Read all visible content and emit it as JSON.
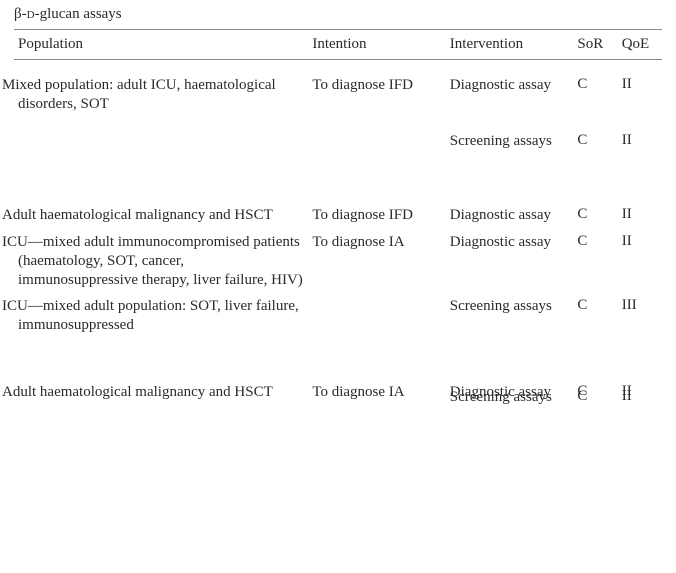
{
  "title_parts": {
    "beta": "β-",
    "d": "d",
    "rest": "-glucan assays"
  },
  "headers": {
    "population": "Population",
    "intention": "Intention",
    "intervention": "Intervention",
    "sor": "SoR",
    "qoe": "QoE"
  },
  "rows": [
    {
      "population": "Mixed population: adult ICU, haematological disorders, SOT",
      "intention": "To diagnose IFD",
      "intervention": "Diagnostic assay",
      "sor": "C",
      "qoe": "II"
    },
    {
      "population": "",
      "intention": "",
      "intervention": "Screening assays",
      "sor": "C",
      "qoe": "II"
    },
    {
      "population": "Adult haematological malignancy and HSCT",
      "intention": "To diagnose IFD",
      "intervention": "Diagnostic assay",
      "sor": "C",
      "qoe": "II"
    },
    {
      "population": "ICU—mixed adult immunocompromised patients (haematology, SOT, cancer, immunosuppressive therapy, liver failure, HIV)",
      "intention": "To diagnose IA",
      "intervention": "Diagnostic assay",
      "sor": "C",
      "qoe": "II"
    },
    {
      "population": "ICU—mixed adult population: SOT, liver failure, immunosuppressed",
      "intention": "",
      "intervention": "Screening assays",
      "sor": "C",
      "qoe": "III"
    },
    {
      "population": "Adult haematological malignancy and HSCT",
      "intention": "To diagnose IA",
      "intervention": "Diagnostic assay",
      "sor": "C",
      "qoe": "II"
    },
    {
      "population": "",
      "intention": "",
      "intervention": "Screening assays",
      "sor": "C",
      "qoe": "II"
    }
  ]
}
